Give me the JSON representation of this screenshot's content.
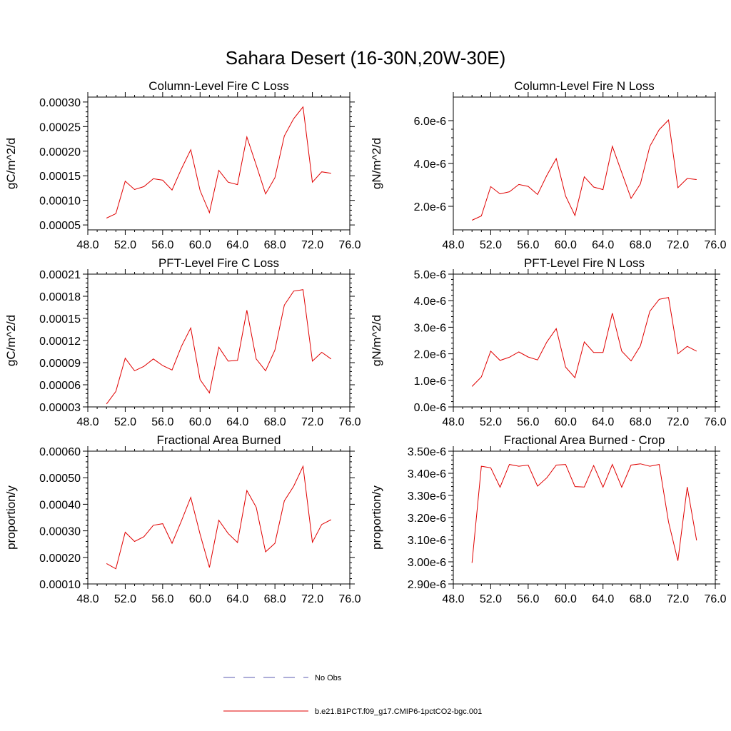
{
  "figure": {
    "title": "Sahara Desert (16-30N,20W-30E)"
  },
  "legend": {
    "entries": [
      {
        "label": "No Obs",
        "color": "#5b5bb0",
        "style": "dashed"
      },
      {
        "label": "b.e21.B1PCT.f09_g17.CMIP6-1pctCO2-bgc.001",
        "color": "#e00000",
        "style": "solid"
      }
    ]
  },
  "chart_data": [
    {
      "type": "line",
      "title": "Column-Level Fire C Loss",
      "ylabel": "gC/m^2/d",
      "xlim": [
        48,
        76
      ],
      "ylim": [
        4e-05,
        0.00031
      ],
      "xticks": [
        48,
        52,
        56,
        60,
        64,
        68,
        72,
        76
      ],
      "xtick_labels": [
        "48.0",
        "52.0",
        "56.0",
        "60.0",
        "64.0",
        "68.0",
        "72.0",
        "76.0"
      ],
      "yticks": [
        5e-05,
        0.0001,
        0.00015,
        0.0002,
        0.00025,
        0.0003
      ],
      "ytick_labels": [
        "0.00005",
        "0.00010",
        "0.00015",
        "0.00020",
        "0.00025",
        "0.00030"
      ],
      "x": [
        50,
        51,
        52,
        53,
        54,
        55,
        56,
        57,
        58,
        59,
        60,
        61,
        62,
        63,
        64,
        65,
        66,
        67,
        68,
        69,
        70,
        71,
        72,
        73,
        74
      ],
      "series": [
        {
          "color": "#e00000",
          "values": [
            6.4e-05,
            7.3e-05,
            0.000139,
            0.000122,
            0.000128,
            0.000144,
            0.000141,
            0.000121,
            0.000164,
            0.000203,
            0.00012,
            7.5e-05,
            0.000161,
            0.000137,
            0.000132,
            0.000229,
            0.000172,
            0.000113,
            0.000146,
            0.000231,
            0.000266,
            0.00029,
            0.000137,
            0.000158,
            0.000155
          ]
        }
      ]
    },
    {
      "type": "line",
      "title": "Column-Level Fire N Loss",
      "ylabel": "gN/m^2/d",
      "xlim": [
        48,
        76
      ],
      "ylim": [
        9e-07,
        7.1e-06
      ],
      "xticks": [
        48,
        52,
        56,
        60,
        64,
        68,
        72,
        76
      ],
      "xtick_labels": [
        "48.0",
        "52.0",
        "56.0",
        "60.0",
        "64.0",
        "68.0",
        "72.0",
        "76.0"
      ],
      "yticks": [
        2e-06,
        4e-06,
        6e-06
      ],
      "ytick_labels": [
        "2.0e-6",
        "4.0e-6",
        "6.0e-6"
      ],
      "x": [
        50,
        51,
        52,
        53,
        54,
        55,
        56,
        57,
        58,
        59,
        60,
        61,
        62,
        63,
        64,
        65,
        66,
        67,
        68,
        69,
        70,
        71,
        72,
        73,
        74
      ],
      "series": [
        {
          "color": "#e00000",
          "values": [
            1.35e-06,
            1.55e-06,
            2.92e-06,
            2.58e-06,
            2.68e-06,
            3.02e-06,
            2.93e-06,
            2.55e-06,
            3.45e-06,
            4.23e-06,
            2.48e-06,
            1.57e-06,
            3.38e-06,
            2.9e-06,
            2.78e-06,
            4.8e-06,
            3.58e-06,
            2.37e-06,
            3.05e-06,
            4.8e-06,
            5.58e-06,
            6.03e-06,
            2.87e-06,
            3.3e-06,
            3.25e-06
          ]
        }
      ]
    },
    {
      "type": "line",
      "title": "PFT-Level Fire C Loss",
      "ylabel": "gC/m^2/d",
      "xlim": [
        48,
        76
      ],
      "ylim": [
        3e-05,
        0.00021
      ],
      "xticks": [
        48,
        52,
        56,
        60,
        64,
        68,
        72,
        76
      ],
      "xtick_labels": [
        "48.0",
        "52.0",
        "56.0",
        "60.0",
        "64.0",
        "68.0",
        "72.0",
        "76.0"
      ],
      "yticks": [
        3e-05,
        6e-05,
        9e-05,
        0.00012,
        0.00015,
        0.00018,
        0.00021
      ],
      "ytick_labels": [
        "0.00003",
        "0.00006",
        "0.00009",
        "0.00012",
        "0.00015",
        "0.00018",
        "0.00021"
      ],
      "x": [
        50,
        51,
        52,
        53,
        54,
        55,
        56,
        57,
        58,
        59,
        60,
        61,
        62,
        63,
        64,
        65,
        66,
        67,
        68,
        69,
        70,
        71,
        72,
        73,
        74
      ],
      "series": [
        {
          "color": "#e00000",
          "values": [
            3.4e-05,
            5.1e-05,
            9.6e-05,
            7.9e-05,
            8.5e-05,
            9.5e-05,
            8.6e-05,
            8e-05,
            0.000112,
            0.000137,
            6.7e-05,
            4.9e-05,
            0.000111,
            9.2e-05,
            9.3e-05,
            0.000161,
            9.5e-05,
            7.9e-05,
            0.000107,
            0.000168,
            0.000187,
            0.000189,
            9.2e-05,
            0.000104,
            9.5e-05
          ]
        }
      ]
    },
    {
      "type": "line",
      "title": "PFT-Level Fire N Loss",
      "ylabel": "gN/m^2/d",
      "xlim": [
        48,
        76
      ],
      "ylim": [
        0,
        5e-06
      ],
      "xticks": [
        48,
        52,
        56,
        60,
        64,
        68,
        72,
        76
      ],
      "xtick_labels": [
        "48.0",
        "52.0",
        "56.0",
        "60.0",
        "64.0",
        "68.0",
        "72.0",
        "76.0"
      ],
      "yticks": [
        0,
        1e-06,
        2e-06,
        3e-06,
        4e-06,
        5e-06
      ],
      "ytick_labels": [
        "0.0e-6",
        "1.0e-6",
        "2.0e-6",
        "3.0e-6",
        "4.0e-6",
        "5.0e-6"
      ],
      "x": [
        50,
        51,
        52,
        53,
        54,
        55,
        56,
        57,
        58,
        59,
        60,
        61,
        62,
        63,
        64,
        65,
        66,
        67,
        68,
        69,
        70,
        71,
        72,
        73,
        74
      ],
      "series": [
        {
          "color": "#e00000",
          "values": [
            7.7e-07,
            1.13e-06,
            2.1e-06,
            1.75e-06,
            1.87e-06,
            2.07e-06,
            1.88e-06,
            1.77e-06,
            2.45e-06,
            2.95e-06,
            1.5e-06,
            1.1e-06,
            2.45e-06,
            2.05e-06,
            2.05e-06,
            3.53e-06,
            2.1e-06,
            1.73e-06,
            2.3e-06,
            3.6e-06,
            4.05e-06,
            4.12e-06,
            2e-06,
            2.28e-06,
            2.1e-06
          ]
        }
      ]
    },
    {
      "type": "line",
      "title": "Fractional Area Burned",
      "ylabel": "proportion/y",
      "xlim": [
        48,
        76
      ],
      "ylim": [
        0.0001,
        0.0006
      ],
      "xticks": [
        48,
        52,
        56,
        60,
        64,
        68,
        72,
        76
      ],
      "xtick_labels": [
        "48.0",
        "52.0",
        "56.0",
        "60.0",
        "64.0",
        "68.0",
        "72.0",
        "76.0"
      ],
      "yticks": [
        0.0001,
        0.0002,
        0.0003,
        0.0004,
        0.0005,
        0.0006
      ],
      "ytick_labels": [
        "0.00010",
        "0.00020",
        "0.00030",
        "0.00040",
        "0.00050",
        "0.00060"
      ],
      "x": [
        50,
        51,
        52,
        53,
        54,
        55,
        56,
        57,
        58,
        59,
        60,
        61,
        62,
        63,
        64,
        65,
        66,
        67,
        68,
        69,
        70,
        71,
        72,
        73,
        74
      ],
      "series": [
        {
          "color": "#e00000",
          "values": [
            0.000177,
            0.000157,
            0.000295,
            0.00026,
            0.000278,
            0.000321,
            0.000327,
            0.000253,
            0.000337,
            0.000426,
            0.000287,
            0.000162,
            0.00034,
            0.00029,
            0.000256,
            0.000452,
            0.000389,
            0.000221,
            0.000253,
            0.000413,
            0.000468,
            0.000543,
            0.000257,
            0.000324,
            0.000342
          ]
        }
      ]
    },
    {
      "type": "line",
      "title": "Fractional Area Burned - Crop",
      "ylabel": "proportion/y",
      "xlim": [
        48,
        76
      ],
      "ylim": [
        2.9e-06,
        3.5e-06
      ],
      "xticks": [
        48,
        52,
        56,
        60,
        64,
        68,
        72,
        76
      ],
      "xtick_labels": [
        "48.0",
        "52.0",
        "56.0",
        "60.0",
        "64.0",
        "68.0",
        "72.0",
        "76.0"
      ],
      "yticks": [
        2.9e-06,
        3e-06,
        3.1e-06,
        3.2e-06,
        3.3e-06,
        3.4e-06,
        3.5e-06
      ],
      "ytick_labels": [
        "2.90e-6",
        "3.00e-6",
        "3.10e-6",
        "3.20e-6",
        "3.30e-6",
        "3.40e-6",
        "3.50e-6"
      ],
      "x": [
        50,
        51,
        52,
        53,
        54,
        55,
        56,
        57,
        58,
        59,
        60,
        61,
        62,
        63,
        64,
        65,
        66,
        67,
        68,
        69,
        70,
        71,
        72,
        73,
        74
      ],
      "series": [
        {
          "color": "#e00000",
          "values": [
            2.995e-06,
            3.432e-06,
            3.425e-06,
            3.337e-06,
            3.44e-06,
            3.432e-06,
            3.437e-06,
            3.342e-06,
            3.38e-06,
            3.437e-06,
            3.44e-06,
            3.34e-06,
            3.338e-06,
            3.435e-06,
            3.337e-06,
            3.44e-06,
            3.337e-06,
            3.437e-06,
            3.443e-06,
            3.432e-06,
            3.44e-06,
            3.18e-06,
            3.005e-06,
            3.338e-06,
            3.097e-06
          ]
        }
      ]
    }
  ]
}
